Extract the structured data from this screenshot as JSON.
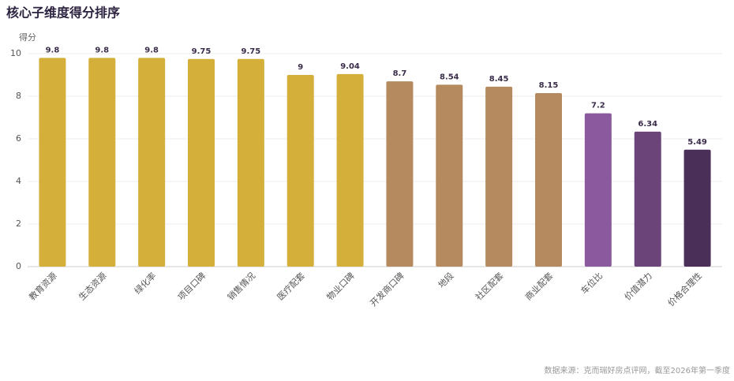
{
  "chart_data": {
    "type": "bar",
    "title": "核心子维度得分排序",
    "y_label": "得分",
    "categories": [
      "教育资源",
      "生态资源",
      "绿化率",
      "项目口碑",
      "销售情况",
      "医疗配套",
      "物业口碑",
      "开发商口碑",
      "地段",
      "社区配套",
      "商业配套",
      "车位比",
      "价值潜力",
      "价格合理性"
    ],
    "values": [
      9.8,
      9.8,
      9.8,
      9.75,
      9.75,
      9,
      9.04,
      8.7,
      8.54,
      8.45,
      8.15,
      7.2,
      6.34,
      5.49
    ],
    "colors": [
      "#d4b03a",
      "#d4b03a",
      "#d4b03a",
      "#d4b03a",
      "#d4b03a",
      "#d4b03a",
      "#d4b03a",
      "#b48a5e",
      "#b48a5e",
      "#b48a5e",
      "#b48a5e",
      "#8b5a9e",
      "#6b4479",
      "#4a3058"
    ],
    "ylim": [
      0,
      10
    ],
    "yticks": [
      0,
      2,
      4,
      6,
      8,
      10
    ],
    "grid": true,
    "source": "数据来源：克而瑞好房点评网，截至2026年第一季度"
  }
}
